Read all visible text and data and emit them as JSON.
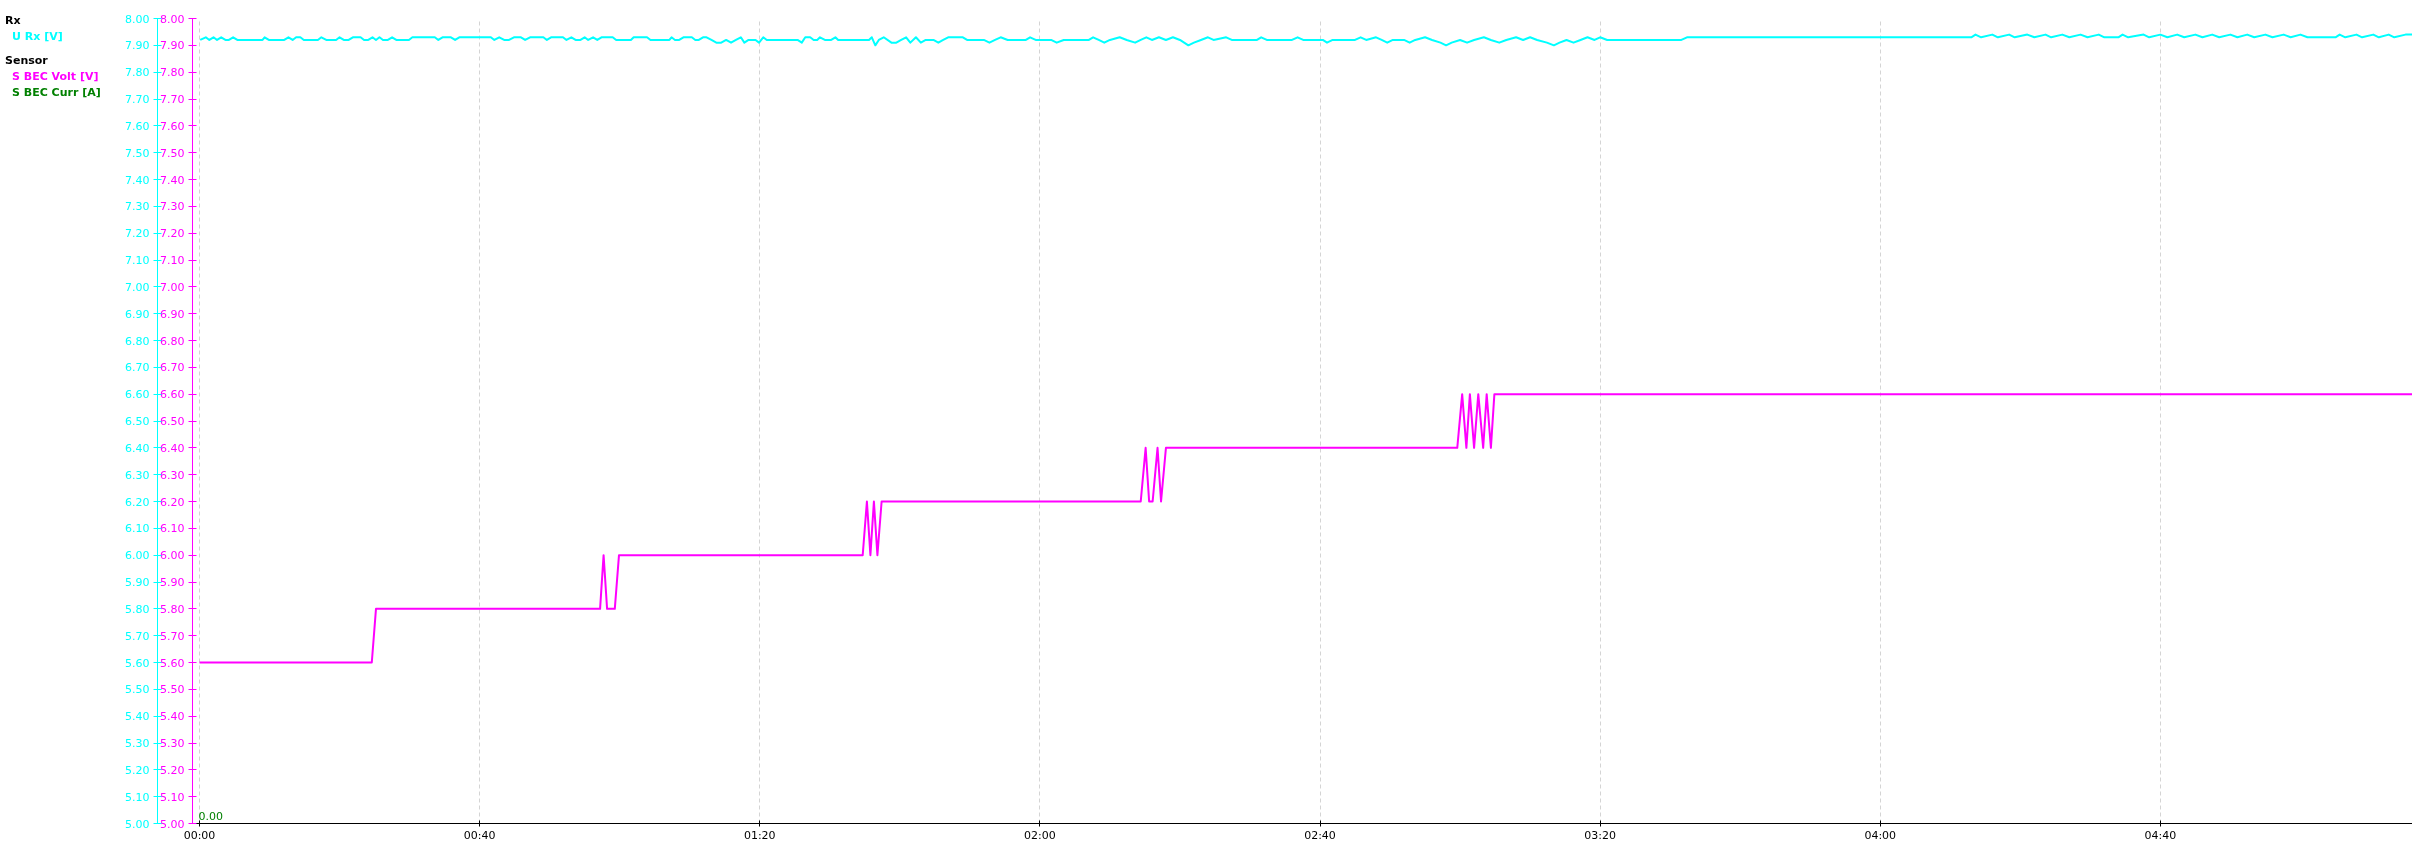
{
  "chart_data": {
    "type": "line",
    "annotations": [
      "Rx",
      "Sensor",
      "0.00"
    ],
    "legend": "top left",
    "grid": "x",
    "xlim": [
      -1,
      316
    ],
    "xticks": [
      {
        "value": 0,
        "label": "00:00"
      },
      {
        "value": 40,
        "label": "00:40"
      },
      {
        "value": 80,
        "label": "01:20"
      },
      {
        "value": 120,
        "label": "02:00"
      },
      {
        "value": 160,
        "label": "02:40"
      },
      {
        "value": 200,
        "label": "03:20"
      },
      {
        "value": 240,
        "label": "04:00"
      },
      {
        "value": 280,
        "label": "04:40"
      }
    ],
    "ylim": [
      5,
      8
    ],
    "yticks": [
      {
        "value": 5,
        "label": "5.00"
      },
      {
        "value": 5.1,
        "label": "5.10"
      },
      {
        "value": 5.2,
        "label": "5.20"
      },
      {
        "value": 5.3,
        "label": "5.30"
      },
      {
        "value": 5.4,
        "label": "5.40"
      },
      {
        "value": 5.5,
        "label": "5.50"
      },
      {
        "value": 5.6,
        "label": "5.60"
      },
      {
        "value": 5.7,
        "label": "5.70"
      },
      {
        "value": 5.8,
        "label": "5.80"
      },
      {
        "value": 5.9,
        "label": "5.90"
      },
      {
        "value": 6,
        "label": "6.00"
      },
      {
        "value": 6.1,
        "label": "6.10"
      },
      {
        "value": 6.2,
        "label": "6.20"
      },
      {
        "value": 6.3,
        "label": "6.30"
      },
      {
        "value": 6.4,
        "label": "6.40"
      },
      {
        "value": 6.5,
        "label": "6.50"
      },
      {
        "value": 6.6,
        "label": "6.60"
      },
      {
        "value": 6.7,
        "label": "6.70"
      },
      {
        "value": 6.8,
        "label": "6.80"
      },
      {
        "value": 6.9,
        "label": "6.90"
      },
      {
        "value": 7,
        "label": "7.00"
      },
      {
        "value": 7.1,
        "label": "7.10"
      },
      {
        "value": 7.2,
        "label": "7.20"
      },
      {
        "value": 7.3,
        "label": "7.30"
      },
      {
        "value": 7.4,
        "label": "7.40"
      },
      {
        "value": 7.5,
        "label": "7.50"
      },
      {
        "value": 7.6,
        "label": "7.60"
      },
      {
        "value": 7.7,
        "label": "7.70"
      },
      {
        "value": 7.8,
        "label": "7.80"
      },
      {
        "value": 7.9,
        "label": "7.90"
      },
      {
        "value": 8,
        "label": "8.00"
      }
    ],
    "y2lim": [
      5,
      8
    ],
    "y2ticks": [
      {
        "value": 5,
        "label": "5.00"
      },
      {
        "value": 5.1,
        "label": "5.10"
      },
      {
        "value": 5.2,
        "label": "5.20"
      },
      {
        "value": 5.3,
        "label": "5.30"
      },
      {
        "value": 5.4,
        "label": "5.40"
      },
      {
        "value": 5.5,
        "label": "5.50"
      },
      {
        "value": 5.6,
        "label": "5.60"
      },
      {
        "value": 5.7,
        "label": "5.70"
      },
      {
        "value": 5.8,
        "label": "5.80"
      },
      {
        "value": 5.9,
        "label": "5.90"
      },
      {
        "value": 6,
        "label": "6.00"
      },
      {
        "value": 6.1,
        "label": "6.10"
      },
      {
        "value": 6.2,
        "label": "6.20"
      },
      {
        "value": 6.3,
        "label": "6.30"
      },
      {
        "value": 6.4,
        "label": "6.40"
      },
      {
        "value": 6.5,
        "label": "6.50"
      },
      {
        "value": 6.6,
        "label": "6.60"
      },
      {
        "value": 6.7,
        "label": "6.70"
      },
      {
        "value": 6.8,
        "label": "6.80"
      },
      {
        "value": 6.9,
        "label": "6.90"
      },
      {
        "value": 7,
        "label": "7.00"
      },
      {
        "value": 7.1,
        "label": "7.10"
      },
      {
        "value": 7.2,
        "label": "7.20"
      },
      {
        "value": 7.3,
        "label": "7.30"
      },
      {
        "value": 7.4,
        "label": "7.40"
      },
      {
        "value": 7.5,
        "label": "7.50"
      },
      {
        "value": 7.6,
        "label": "7.60"
      },
      {
        "value": 7.7,
        "label": "7.70"
      },
      {
        "value": 7.8,
        "label": "7.80"
      },
      {
        "value": 7.9,
        "label": "7.90"
      },
      {
        "value": 8,
        "label": "8.00"
      }
    ],
    "series": [
      {
        "name": "U Rx [V]",
        "color": "#00ffff",
        "x": [
          0.1,
          0.9,
          1.4,
          2.0,
          2.5,
          3.1,
          3.7,
          4.2,
          4.8,
          5.4,
          9.0,
          9.3,
          9.9,
          12.1,
          12.7,
          13.3,
          13.8,
          14.4,
          14.9,
          16.9,
          17.4,
          18.1,
          19.5,
          20.0,
          20.6,
          21.3,
          21.9,
          23.0,
          23.5,
          24.1,
          24.7,
          25.2,
          25.7,
          26.2,
          26.9,
          27.5,
          28.1,
          29.9,
          30.4,
          33.6,
          34.1,
          34.7,
          35.9,
          36.5,
          37.1,
          41.6,
          42.1,
          42.8,
          43.5,
          44.2,
          44.9,
          45.9,
          46.5,
          47.2,
          49.1,
          49.6,
          50.2,
          51.9,
          52.4,
          53.1,
          53.7,
          54.4,
          55.0,
          55.5,
          56.2,
          56.8,
          57.4,
          59.0,
          59.5,
          61.6,
          62.0,
          63.9,
          64.4,
          67.1,
          67.4,
          67.9,
          68.5,
          69.1,
          70.3,
          70.8,
          71.3,
          71.9,
          72.4,
          73.1,
          73.8,
          74.5,
          75.2,
          75.9,
          76.6,
          77.3,
          77.8,
          78.4,
          79.4,
          79.9,
          80.5,
          81.0,
          85.4,
          86.0,
          86.5,
          87.2,
          87.7,
          88.2,
          88.6,
          89.3,
          90.2,
          90.8,
          91.2,
          95.6,
          96.0,
          96.5,
          97.0,
          97.7,
          98.8,
          99.5,
          100.2,
          100.9,
          101.5,
          102.3,
          103.0,
          103.7,
          104.8,
          105.5,
          106.2,
          106.9,
          109.0,
          109.6,
          112.0,
          112.8,
          113.6,
          114.4,
          115.4,
          118.0,
          118.6,
          119.4,
          121.6,
          122.4,
          123.4,
          127.0,
          127.6,
          128.4,
          129.2,
          130.0,
          131.4,
          132.4,
          133.6,
          134.4,
          135.2,
          136.0,
          137.0,
          138.0,
          139.0,
          140.0,
          141.2,
          142.0,
          143.0,
          144.0,
          144.8,
          146.6,
          147.4,
          151.0,
          151.6,
          152.4,
          156.0,
          156.8,
          157.6,
          160.4,
          161.0,
          161.8,
          165.0,
          165.8,
          166.6,
          168.0,
          168.8,
          169.6,
          170.4,
          172.0,
          172.8,
          173.6,
          175.0,
          176.0,
          177.2,
          178.0,
          178.8,
          180.0,
          181.0,
          182.0,
          183.4,
          184.4,
          185.6,
          186.6,
          188.0,
          189.0,
          190.0,
          191.0,
          192.4,
          193.4,
          194.2,
          195.2,
          196.2,
          197.2,
          198.2,
          199.2,
          200.0,
          201.0,
          211.6,
          212.4,
          253.0,
          253.6,
          254.4,
          256.0,
          256.8,
          258.4,
          259.2,
          261.0,
          262.0,
          263.6,
          264.4,
          266.0,
          267.0,
          268.6,
          269.6,
          271.2,
          272.0,
          274.0,
          274.6,
          275.4,
          277.6,
          278.4,
          280.0,
          281.0,
          282.4,
          283.4,
          285.0,
          286.0,
          287.4,
          288.4,
          290.0,
          291.0,
          292.4,
          293.4,
          295.0,
          296.0,
          297.6,
          298.6,
          300.0,
          301.0,
          305.0,
          305.6,
          306.4,
          308.0,
          308.8,
          310.4,
          311.2,
          312.6,
          313.4,
          315.0,
          316.0
        ],
        "values": [
          7.92,
          7.93,
          7.92,
          7.93,
          7.92,
          7.93,
          7.92,
          7.92,
          7.93,
          7.92,
          7.92,
          7.93,
          7.92,
          7.92,
          7.93,
          7.92,
          7.93,
          7.93,
          7.92,
          7.92,
          7.93,
          7.92,
          7.92,
          7.93,
          7.92,
          7.92,
          7.93,
          7.93,
          7.92,
          7.92,
          7.93,
          7.92,
          7.93,
          7.92,
          7.92,
          7.93,
          7.92,
          7.92,
          7.93,
          7.93,
          7.92,
          7.93,
          7.93,
          7.92,
          7.93,
          7.93,
          7.92,
          7.93,
          7.92,
          7.92,
          7.93,
          7.93,
          7.92,
          7.93,
          7.93,
          7.92,
          7.93,
          7.93,
          7.92,
          7.93,
          7.92,
          7.92,
          7.93,
          7.92,
          7.93,
          7.92,
          7.93,
          7.93,
          7.92,
          7.92,
          7.93,
          7.93,
          7.92,
          7.92,
          7.93,
          7.92,
          7.92,
          7.93,
          7.93,
          7.92,
          7.92,
          7.93,
          7.93,
          7.92,
          7.91,
          7.91,
          7.92,
          7.91,
          7.92,
          7.93,
          7.91,
          7.92,
          7.92,
          7.91,
          7.93,
          7.92,
          7.92,
          7.91,
          7.93,
          7.93,
          7.92,
          7.92,
          7.93,
          7.92,
          7.92,
          7.93,
          7.92,
          7.92,
          7.93,
          7.9,
          7.92,
          7.93,
          7.91,
          7.91,
          7.92,
          7.93,
          7.91,
          7.93,
          7.91,
          7.92,
          7.92,
          7.91,
          7.92,
          7.93,
          7.93,
          7.92,
          7.92,
          7.91,
          7.92,
          7.93,
          7.92,
          7.92,
          7.93,
          7.92,
          7.92,
          7.91,
          7.92,
          7.92,
          7.93,
          7.92,
          7.91,
          7.92,
          7.93,
          7.92,
          7.91,
          7.92,
          7.93,
          7.92,
          7.93,
          7.92,
          7.93,
          7.92,
          7.9,
          7.91,
          7.92,
          7.93,
          7.92,
          7.93,
          7.92,
          7.92,
          7.93,
          7.92,
          7.92,
          7.93,
          7.92,
          7.92,
          7.91,
          7.92,
          7.92,
          7.93,
          7.92,
          7.93,
          7.92,
          7.91,
          7.92,
          7.92,
          7.91,
          7.92,
          7.93,
          7.92,
          7.91,
          7.9,
          7.91,
          7.92,
          7.91,
          7.92,
          7.93,
          7.92,
          7.91,
          7.92,
          7.93,
          7.92,
          7.93,
          7.92,
          7.91,
          7.9,
          7.91,
          7.92,
          7.91,
          7.92,
          7.93,
          7.92,
          7.93,
          7.92,
          7.92,
          7.93,
          7.93,
          7.94,
          7.93,
          7.94,
          7.93,
          7.94,
          7.93,
          7.94,
          7.93,
          7.94,
          7.93,
          7.94,
          7.93,
          7.94,
          7.93,
          7.94,
          7.93,
          7.93,
          7.94,
          7.93,
          7.94,
          7.93,
          7.94,
          7.93,
          7.94,
          7.93,
          7.94,
          7.93,
          7.94,
          7.93,
          7.94,
          7.93,
          7.94,
          7.93,
          7.94,
          7.93,
          7.94,
          7.93,
          7.94,
          7.93,
          7.93,
          7.94,
          7.93,
          7.94,
          7.93,
          7.94,
          7.93,
          7.94,
          7.93,
          7.94,
          7.94
        ]
      },
      {
        "name": "S BEC Volt [V]",
        "color": "#ff00ff",
        "axis": "y2",
        "x": [
          0,
          24.6,
          25.2,
          57.2,
          57.7,
          58.2,
          59.3,
          59.9,
          94.7,
          95.3,
          95.8,
          96.3,
          96.8,
          97.4,
          134.4,
          135.1,
          135.6,
          136.1,
          136.8,
          137.3,
          138.0,
          179.6,
          180.3,
          180.9,
          181.4,
          182.0,
          182.6,
          183.3,
          183.8,
          184.4,
          184.9,
          316
        ],
        "values": [
          5.6,
          5.6,
          5.8,
          5.8,
          6.0,
          5.8,
          5.8,
          6.0,
          6.0,
          6.2,
          6.0,
          6.2,
          6.0,
          6.2,
          6.2,
          6.4,
          6.2,
          6.2,
          6.4,
          6.2,
          6.4,
          6.4,
          6.6,
          6.4,
          6.6,
          6.4,
          6.6,
          6.4,
          6.6,
          6.4,
          6.6,
          6.6
        ]
      },
      {
        "name": "S BEC Curr [A]",
        "color": "#008000"
      }
    ]
  }
}
